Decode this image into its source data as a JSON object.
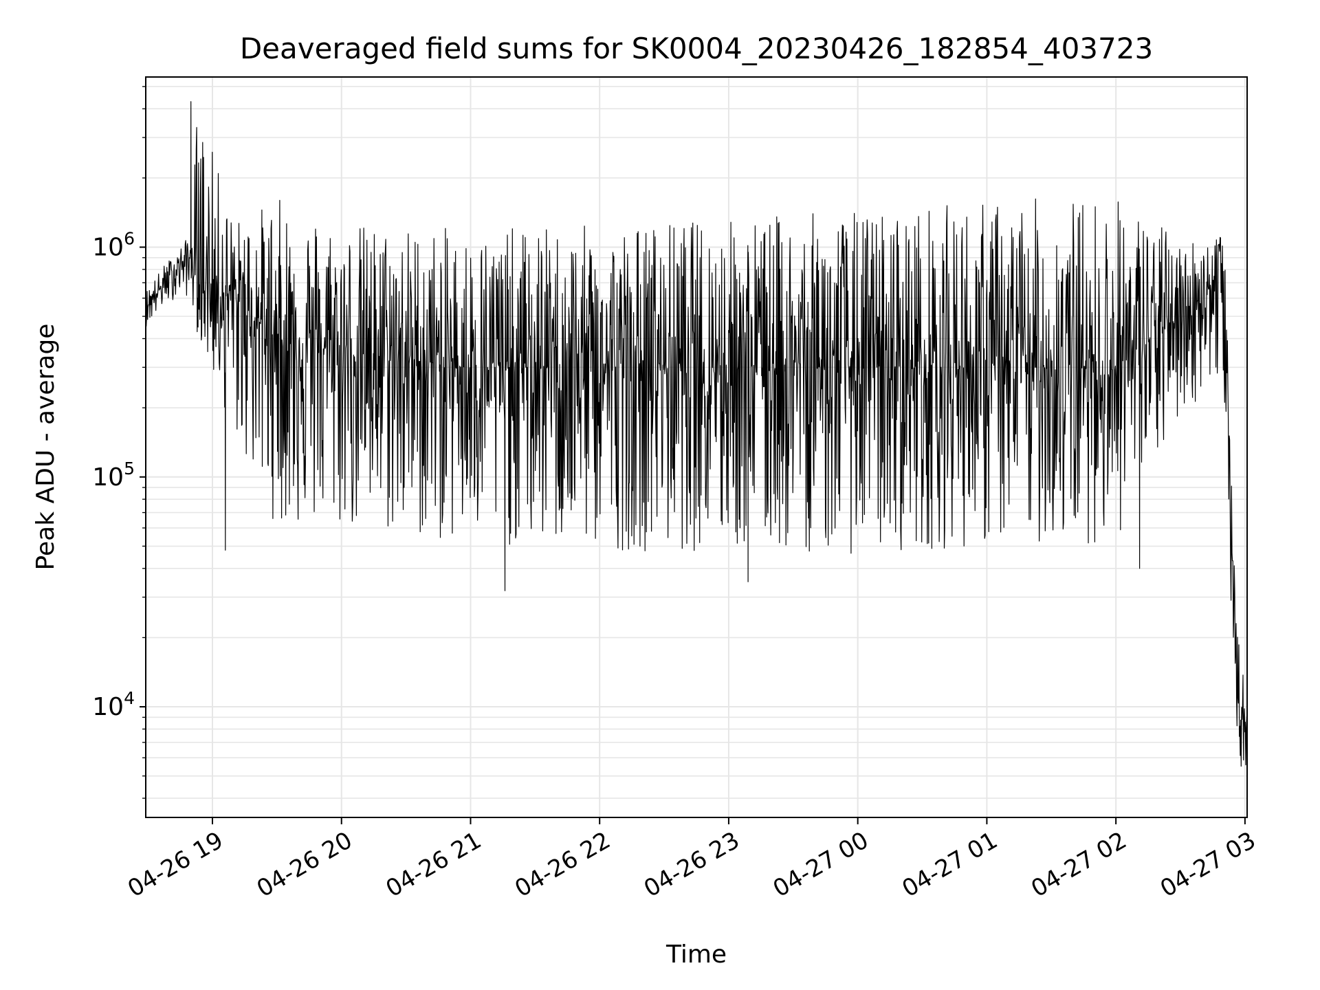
{
  "chart_data": {
    "type": "line",
    "title": "Deaveraged field sums for SK0004_20230426_182854_403723",
    "xlabel": "Time",
    "ylabel": "Peak ADU - average",
    "x_scale": "time",
    "y_scale": "log",
    "xlim": [
      "2023-04-26 18:29",
      "2023-04-27 03:01"
    ],
    "ylim": [
      3300,
      5500000
    ],
    "x_ticks": [
      "04-26 19",
      "04-26 20",
      "04-26 21",
      "04-26 22",
      "04-26 23",
      "04-27 00",
      "04-27 01",
      "04-27 02",
      "04-27 03"
    ],
    "y_ticks": [
      {
        "base": "10",
        "exp": "4",
        "value": 10000
      },
      {
        "base": "10",
        "exp": "5",
        "value": 100000
      },
      {
        "base": "10",
        "exp": "6",
        "value": 1000000
      }
    ],
    "grid": true,
    "line_color": "#000000",
    "series": [
      {
        "x": [
          "2023-04-26 18:29",
          "2023-04-26 18:38",
          "2023-04-26 18:45",
          "2023-04-26 18:50",
          "2023-04-26 18:53",
          "2023-04-26 19:10",
          "2023-04-26 19:30",
          "2023-04-26 20:00",
          "2023-04-26 21:00",
          "2023-04-26 22:00",
          "2023-04-26 23:00",
          "2023-04-27 00:00",
          "2023-04-27 01:00",
          "2023-04-27 02:00",
          "2023-04-27 02:30",
          "2023-04-27 02:45",
          "2023-04-27 02:48",
          "2023-04-27 02:51",
          "2023-04-27 02:53",
          "2023-04-27 02:55",
          "2023-04-27 02:57",
          "2023-04-27 03:00",
          "2023-04-27 03:01"
        ],
        "y_min": [
          450000,
          560000,
          620000,
          600000,
          420000,
          150000,
          60000,
          58000,
          50000,
          48000,
          47000,
          46000,
          50000,
          52000,
          180000,
          250000,
          250000,
          140000,
          40000,
          12000,
          6000,
          4500,
          7500
        ],
        "y_max": [
          650000,
          850000,
          1000000,
          1150000,
          4300000,
          1300000,
          1650000,
          1300000,
          1200000,
          1250000,
          1350000,
          1450000,
          1600000,
          1700000,
          1100000,
          1100000,
          1250000,
          900000,
          140000,
          45000,
          20000,
          12000,
          11000
        ],
        "y_mean": [
          550000,
          700000,
          850000,
          900000,
          700000,
          600000,
          400000,
          350000,
          300000,
          300000,
          320000,
          300000,
          300000,
          300000,
          500000,
          700000,
          1000000,
          500000,
          80000,
          20000,
          10000,
          8500,
          9000
        ],
        "spikes": [
          {
            "x": "2023-04-26 18:50",
            "y": 4300000
          },
          {
            "x": "2023-04-26 19:06",
            "y": 48000
          },
          {
            "x": "2023-04-26 21:16",
            "y": 32000
          },
          {
            "x": "2023-04-26 23:09",
            "y": 35000
          },
          {
            "x": "2023-04-27 02:11",
            "y": 40000
          }
        ]
      }
    ]
  }
}
